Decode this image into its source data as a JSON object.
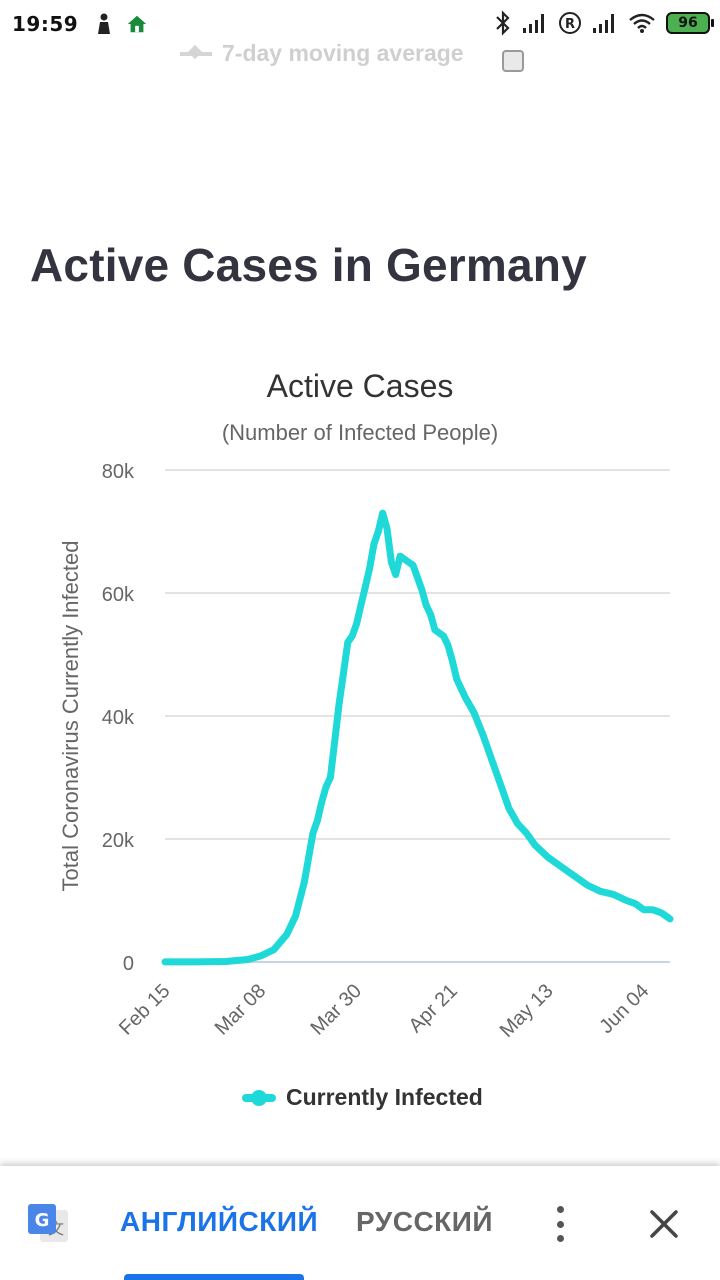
{
  "status_bar": {
    "time": "19:59",
    "battery": "96"
  },
  "moving_average": {
    "label": "7-day moving average"
  },
  "section_title": "Active Cases in Germany",
  "chart_data": {
    "type": "line",
    "title": "Active Cases",
    "subtitle": "(Number of Infected People)",
    "ylabel": "Total Coronavirus Currently Infected",
    "xlabel": "",
    "ylim": [
      0,
      80000
    ],
    "yticks": [
      0,
      20000,
      40000,
      60000,
      80000
    ],
    "ytick_labels": [
      "0",
      "20k",
      "40k",
      "60k",
      "80k"
    ],
    "xtick_labels": [
      "Feb 15",
      "Mar 08",
      "Mar 30",
      "Apr 21",
      "May 13",
      "Jun 04"
    ],
    "grid": true,
    "legend_position": "bottom",
    "color": "#1fd8d8",
    "series": [
      {
        "name": "Currently Infected",
        "x": [
          "Feb 15",
          "Feb 22",
          "Feb 29",
          "Mar 05",
          "Mar 08",
          "Mar 11",
          "Mar 14",
          "Mar 16",
          "Mar 18",
          "Mar 20",
          "Mar 21",
          "Mar 22",
          "Mar 23",
          "Mar 24",
          "Mar 25",
          "Mar 26",
          "Mar 27",
          "Mar 28",
          "Mar 29",
          "Mar 30",
          "Mar 31",
          "Apr 01",
          "Apr 02",
          "Apr 03",
          "Apr 04",
          "Apr 05",
          "Apr 06",
          "Apr 07",
          "Apr 08",
          "Apr 09",
          "Apr 10",
          "Apr 11",
          "Apr 12",
          "Apr 13",
          "Apr 14",
          "Apr 15",
          "Apr 16",
          "Apr 17",
          "Apr 18",
          "Apr 19",
          "Apr 20",
          "Apr 21",
          "Apr 22",
          "Apr 24",
          "Apr 26",
          "Apr 28",
          "Apr 30",
          "May 02",
          "May 04",
          "May 06",
          "May 08",
          "May 10",
          "May 13",
          "May 16",
          "May 19",
          "May 22",
          "May 25",
          "May 28",
          "May 31",
          "Jun 02",
          "Jun 04",
          "Jun 06",
          "Jun 08",
          "Jun 10"
        ],
        "values": [
          16,
          16,
          80,
          400,
          1000,
          2000,
          4500,
          7500,
          13000,
          21000,
          23000,
          26000,
          28500,
          30000,
          36000,
          42000,
          47000,
          52000,
          53000,
          55000,
          58000,
          61000,
          64000,
          68000,
          70000,
          73000,
          70500,
          65000,
          63000,
          66000,
          65500,
          65000,
          64500,
          62500,
          60500,
          58000,
          56500,
          54000,
          53500,
          53000,
          51500,
          49000,
          46000,
          43000,
          40500,
          37000,
          33000,
          29000,
          25000,
          22500,
          21000,
          19000,
          17000,
          15500,
          14000,
          12500,
          11500,
          11000,
          10000,
          9500,
          8500,
          8500,
          8000,
          7000
        ]
      }
    ]
  },
  "translate_bar": {
    "tab_english": "АНГЛИЙСКИЙ",
    "tab_russian": "РУССКИЙ"
  }
}
